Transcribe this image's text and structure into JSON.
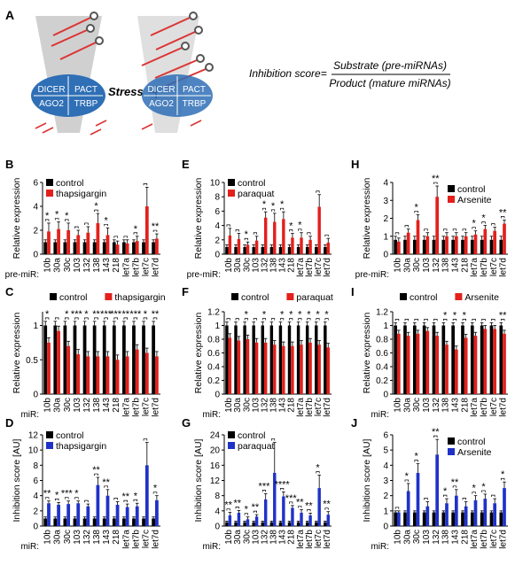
{
  "figure": {
    "panel_a_letter": "A",
    "complex_labels": [
      "DICER",
      "PACT",
      "AGO2",
      "TRBP"
    ],
    "stress_label": "Stress",
    "formula": {
      "lhs": "Inhibition score=",
      "numerator": "Substrate (pre-miRNAs)",
      "denominator": "Product (mature miRNAs)"
    },
    "colors": {
      "control": "#000000",
      "red": "#e3201b",
      "blue": "#1f32c8",
      "complex_blue": "#2f6fb6",
      "hairpin_red": "#e23a3a",
      "cone_gray": "#b8b8b8"
    }
  },
  "chart_data": [
    {
      "panel": "B",
      "type": "bar",
      "ylabel": "Relative expression",
      "row_label": "pre-miR:",
      "ylim": [
        0,
        6
      ],
      "yticks": [
        0,
        2,
        4,
        6
      ],
      "categories": [
        "10b",
        "30a",
        "30c",
        "103",
        "132",
        "138",
        "143",
        "218",
        "let7a",
        "let7b",
        "let7c",
        "let7d"
      ],
      "series": [
        {
          "name": "control",
          "color": "#000000",
          "values": [
            1,
            1,
            1,
            1,
            1,
            1,
            1,
            1,
            1,
            1,
            1,
            1
          ],
          "errors": [
            0.2,
            0.2,
            0.2,
            0.2,
            0.2,
            0.2,
            0.2,
            0.2,
            0.2,
            0.2,
            0.2,
            0.2
          ]
        },
        {
          "name": "thapsigargin",
          "color": "#e3201b",
          "values": [
            1.9,
            2.1,
            2.0,
            1.6,
            1.8,
            2.6,
            1.6,
            0.8,
            0.9,
            1.1,
            4.0,
            1.3
          ],
          "errors": [
            0.7,
            0.6,
            0.6,
            0.4,
            0.5,
            0.8,
            0.6,
            0.3,
            0.3,
            0.4,
            1.6,
            0.4
          ]
        }
      ],
      "sig": [
        "*",
        "*",
        "*",
        "",
        "",
        "*",
        "*",
        "",
        "",
        "*",
        "",
        "**"
      ],
      "legend": "top-left"
    },
    {
      "panel": "E",
      "type": "bar",
      "ylabel": "Relative expression",
      "row_label": "pre-miR:",
      "ylim": [
        0,
        10
      ],
      "yticks": [
        0,
        2,
        4,
        6,
        8,
        10
      ],
      "categories": [
        "10b",
        "30a",
        "30c",
        "103",
        "132",
        "138",
        "143",
        "218",
        "let7a",
        "let7b",
        "let7c",
        "let7d"
      ],
      "series": [
        {
          "name": "control",
          "color": "#000000",
          "values": [
            1,
            1,
            1,
            1,
            1,
            1,
            1,
            1,
            1,
            1,
            1,
            1
          ],
          "errors": [
            0.3,
            0.3,
            0.3,
            0.3,
            0.3,
            0.3,
            0.3,
            0.3,
            0.3,
            0.3,
            0.3,
            0.3
          ]
        },
        {
          "name": "paraquat",
          "color": "#e3201b",
          "values": [
            2.6,
            2.1,
            1.3,
            1.9,
            5.1,
            4.5,
            4.9,
            2.3,
            2.3,
            2.0,
            6.6,
            1.6
          ],
          "errors": [
            1.0,
            0.8,
            0.4,
            0.6,
            0.8,
            1.2,
            1.0,
            0.6,
            0.7,
            0.5,
            1.7,
            0.6
          ]
        }
      ],
      "sig": [
        "",
        "",
        "*",
        "",
        "*",
        "*",
        "*",
        "*",
        "*",
        "",
        "",
        ""
      ],
      "legend": "top-left"
    },
    {
      "panel": "H",
      "type": "bar",
      "ylabel": "Relative expression",
      "row_label": "pre-miR:",
      "ylim": [
        0,
        4
      ],
      "yticks": [
        0,
        1,
        2,
        3,
        4
      ],
      "categories": [
        "10b",
        "30a",
        "30c",
        "103",
        "132",
        "138",
        "143",
        "218",
        "let7a",
        "let7b",
        "let7c",
        "let7d"
      ],
      "series": [
        {
          "name": "control",
          "color": "#000000",
          "values": [
            0.8,
            0.8,
            0.8,
            0.8,
            0.8,
            0.8,
            0.8,
            0.8,
            0.8,
            0.8,
            0.8,
            0.8
          ],
          "errors": [
            0.2,
            0.2,
            0.2,
            0.2,
            0.2,
            0.2,
            0.2,
            0.2,
            0.2,
            0.2,
            0.2,
            0.2
          ]
        },
        {
          "name": "Arsenite",
          "color": "#e3201b",
          "values": [
            0.7,
            1.2,
            1.9,
            1.0,
            3.2,
            1.0,
            1.0,
            1.0,
            1.1,
            1.4,
            1.3,
            1.7
          ],
          "errors": [
            0.2,
            0.2,
            0.3,
            0.2,
            0.6,
            0.2,
            0.2,
            0.2,
            0.2,
            0.2,
            0.2,
            0.2
          ]
        }
      ],
      "sig": [
        "",
        "",
        "*",
        "",
        "**",
        "",
        "",
        "",
        "*",
        "*",
        "",
        "**"
      ],
      "legend": "top-right"
    },
    {
      "panel": "C",
      "type": "bar",
      "ylabel": "Relative expression",
      "row_label": "miR:",
      "ylim": [
        0,
        1.2
      ],
      "yticks": [
        0,
        0.5,
        1
      ],
      "categories": [
        "10b",
        "30a",
        "30c",
        "103",
        "132",
        "138",
        "143",
        "218",
        "let7a",
        "let7b",
        "let7c",
        "let7d"
      ],
      "series": [
        {
          "name": "control",
          "color": "#000000",
          "values": [
            1,
            1,
            1,
            1,
            1,
            1,
            1,
            1,
            1,
            1,
            1,
            1
          ],
          "errors": [
            0.06,
            0.06,
            0.06,
            0.06,
            0.06,
            0.06,
            0.06,
            0.06,
            0.06,
            0.06,
            0.06,
            0.06
          ]
        },
        {
          "name": "thapsigargin",
          "color": "#e3201b",
          "values": [
            0.75,
            0.92,
            0.7,
            0.58,
            0.55,
            0.55,
            0.55,
            0.5,
            0.55,
            0.65,
            0.6,
            0.55
          ],
          "errors": [
            0.07,
            0.07,
            0.07,
            0.07,
            0.07,
            0.07,
            0.07,
            0.07,
            0.07,
            0.07,
            0.07,
            0.07
          ]
        }
      ],
      "sig": [
        "*",
        "",
        "*",
        "***",
        "*",
        "**",
        "***",
        "***",
        "**",
        "***",
        "*",
        "**"
      ],
      "legend": "top"
    },
    {
      "panel": "F",
      "type": "bar",
      "ylabel": "Relative expression",
      "row_label": "miR:",
      "ylim": [
        0,
        1.2
      ],
      "yticks": [
        0,
        0.2,
        0.4,
        0.6,
        0.8,
        1,
        1.2
      ],
      "categories": [
        "10b",
        "30a",
        "30c",
        "103",
        "132",
        "138",
        "143",
        "218",
        "let7a",
        "let7b",
        "let7c",
        "let7d"
      ],
      "series": [
        {
          "name": "control",
          "color": "#000000",
          "values": [
            1,
            1,
            1,
            1,
            1,
            1,
            1,
            1,
            1,
            1,
            1,
            1
          ],
          "errors": [
            0.05,
            0.05,
            0.05,
            0.05,
            0.05,
            0.05,
            0.05,
            0.05,
            0.05,
            0.05,
            0.05,
            0.05
          ]
        },
        {
          "name": "paraquat",
          "color": "#e3201b",
          "values": [
            0.82,
            0.78,
            0.8,
            0.75,
            0.75,
            0.72,
            0.7,
            0.7,
            0.72,
            0.75,
            0.72,
            0.68
          ],
          "errors": [
            0.06,
            0.06,
            0.06,
            0.06,
            0.06,
            0.06,
            0.06,
            0.06,
            0.06,
            0.06,
            0.06,
            0.06
          ]
        }
      ],
      "sig": [
        "",
        "",
        "*",
        "",
        "*",
        "",
        "*",
        "*",
        "*",
        "*",
        "*",
        "*"
      ],
      "legend": "top"
    },
    {
      "panel": "I",
      "type": "bar",
      "ylabel": "Relative expression",
      "row_label": "miR:",
      "ylim": [
        0,
        1.2
      ],
      "yticks": [
        0,
        0.2,
        0.4,
        0.6,
        0.8,
        1,
        1.2
      ],
      "categories": [
        "10b",
        "30a",
        "30c",
        "103",
        "132",
        "138",
        "143",
        "218",
        "let7a",
        "let7b",
        "let7c",
        "let7d"
      ],
      "series": [
        {
          "name": "control",
          "color": "#000000",
          "values": [
            1,
            1,
            1,
            1,
            1,
            1,
            1,
            1,
            1,
            1,
            1,
            1
          ],
          "errors": [
            0.04,
            0.04,
            0.04,
            0.04,
            0.04,
            0.04,
            0.04,
            0.04,
            0.04,
            0.04,
            0.04,
            0.04
          ]
        },
        {
          "name": "Arsenite",
          "color": "#e3201b",
          "values": [
            0.88,
            0.85,
            0.88,
            0.92,
            0.85,
            0.72,
            0.65,
            0.82,
            0.85,
            0.95,
            0.95,
            0.88
          ],
          "errors": [
            0.05,
            0.05,
            0.05,
            0.05,
            0.05,
            0.05,
            0.05,
            0.05,
            0.05,
            0.05,
            0.05,
            0.05
          ]
        }
      ],
      "sig": [
        "",
        "",
        "",
        "",
        "",
        "*",
        "*",
        "*",
        "",
        "",
        "",
        "**"
      ],
      "legend": "top"
    },
    {
      "panel": "D",
      "type": "bar",
      "ylabel": "Inhibition score [AU]",
      "row_label": "miR:",
      "ylim": [
        0,
        12
      ],
      "yticks": [
        0,
        2,
        4,
        6,
        8,
        10,
        12
      ],
      "categories": [
        "10b",
        "30a",
        "30c",
        "103",
        "132",
        "138",
        "143",
        "218",
        "let7a",
        "let7b",
        "let7c",
        "let7d"
      ],
      "series": [
        {
          "name": "control",
          "color": "#000000",
          "values": [
            1,
            1,
            1,
            1,
            1,
            1,
            1,
            1,
            1,
            1,
            1,
            1
          ],
          "errors": [
            0.2,
            0.2,
            0.2,
            0.2,
            0.2,
            0.2,
            0.2,
            0.2,
            0.2,
            0.2,
            0.2,
            0.2
          ]
        },
        {
          "name": "thapsigargin",
          "color": "#1f32c8",
          "values": [
            3.0,
            2.8,
            2.9,
            3.0,
            2.6,
            5.4,
            4.0,
            2.8,
            2.5,
            2.6,
            8.0,
            3.4
          ],
          "errors": [
            0.3,
            0.3,
            0.4,
            0.3,
            0.3,
            1.0,
            0.8,
            0.4,
            0.4,
            0.4,
            3.0,
            0.6
          ]
        }
      ],
      "sig": [
        "**",
        "*",
        "***",
        "*",
        "",
        "**",
        "**",
        "",
        "**",
        "*",
        "",
        "*"
      ],
      "legend": "top-left"
    },
    {
      "panel": "G",
      "type": "bar",
      "ylabel": "Inhibition score [AU]",
      "row_label": "miR:",
      "ylim": [
        0,
        24
      ],
      "yticks": [
        0,
        4,
        8,
        12,
        16,
        20,
        24
      ],
      "categories": [
        "10b",
        "30a",
        "30c",
        "103",
        "132",
        "138",
        "143",
        "218",
        "let7a",
        "let7b",
        "let7c",
        "let7d"
      ],
      "series": [
        {
          "name": "control",
          "color": "#000000",
          "values": [
            1,
            1,
            1,
            1,
            1,
            1,
            1,
            1,
            1,
            1,
            1,
            1
          ],
          "errors": [
            0.3,
            0.3,
            0.3,
            0.3,
            0.3,
            0.3,
            0.3,
            0.3,
            0.3,
            0.3,
            0.3,
            0.3
          ]
        },
        {
          "name": "paraquat",
          "color": "#1f32c8",
          "values": [
            2.8,
            3.5,
            1.8,
            2.5,
            7.0,
            14.0,
            7.8,
            4.8,
            3.5,
            2.8,
            10.0,
            3.0
          ],
          "errors": [
            0.8,
            0.6,
            0.6,
            0.5,
            1.5,
            8.0,
            1.2,
            0.6,
            0.8,
            0.6,
            3.4,
            0.8
          ]
        }
      ],
      "sig": [
        "**",
        "**",
        "*",
        "**",
        "***",
        "",
        "****",
        "***",
        "**",
        "**",
        "*",
        "**"
      ],
      "legend": "top-left"
    },
    {
      "panel": "J",
      "type": "bar",
      "ylabel": "Inhibition score [AU]",
      "row_label": "miR:",
      "ylim": [
        0,
        6
      ],
      "yticks": [
        0,
        1,
        2,
        3,
        4,
        5,
        6
      ],
      "categories": [
        "10b",
        "30a",
        "30c",
        "103",
        "132",
        "138",
        "143",
        "218",
        "let7a",
        "let7b",
        "let7c",
        "let7d"
      ],
      "series": [
        {
          "name": "control",
          "color": "#000000",
          "values": [
            0.9,
            0.9,
            0.9,
            0.9,
            0.9,
            0.9,
            0.9,
            0.9,
            0.9,
            0.9,
            0.9,
            0.9
          ],
          "errors": [
            0.1,
            0.1,
            0.1,
            0.1,
            0.1,
            0.1,
            0.1,
            0.1,
            0.1,
            0.1,
            0.1,
            0.1
          ]
        },
        {
          "name": "Arsenite",
          "color": "#1f32c8",
          "values": [
            0.9,
            2.3,
            3.5,
            1.3,
            4.7,
            1.5,
            2.0,
            1.3,
            1.7,
            1.8,
            1.5,
            2.5
          ],
          "errors": [
            0.1,
            0.5,
            0.6,
            0.3,
            1.0,
            0.3,
            0.4,
            0.3,
            0.3,
            0.3,
            0.3,
            0.4
          ]
        }
      ],
      "sig": [
        "",
        "*",
        "*",
        "",
        "**",
        "*",
        "**",
        "",
        "*",
        "*",
        "",
        "*"
      ],
      "legend": "top-right"
    }
  ]
}
